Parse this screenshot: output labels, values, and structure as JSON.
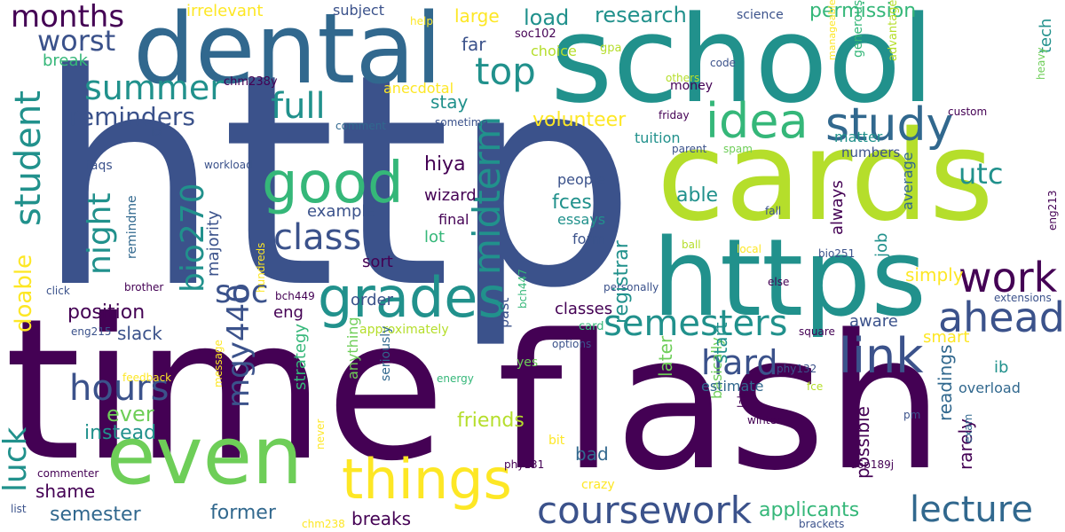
{
  "palette": {
    "dark_purple": "#440154",
    "deep_blue": "#3b528b",
    "blue": "#31688e",
    "teal": "#21918c",
    "green": "#35b779",
    "lime": "#6ece58",
    "light_lime": "#b5de2b",
    "yellow": "#fde725",
    "background": "#ffffff"
  },
  "words": [
    "http",
    "time",
    "flash",
    "school",
    "cards",
    "dental",
    "https",
    "even",
    "things",
    "grades",
    "good",
    "idea",
    "study",
    "coursework",
    "lecture",
    "link",
    "work",
    "ahead",
    "semesters",
    "top",
    "midterm",
    "class",
    "summer",
    "hours",
    "student",
    "luck",
    "months",
    "full",
    "hard",
    "night",
    "worst",
    "reminders",
    "soc",
    "bio270",
    "mgy440",
    "doable",
    "utc",
    "research",
    "load",
    "permission",
    "irrelevant",
    "subject",
    "large",
    "volunteer",
    "stay",
    "far",
    "position",
    "slack",
    "ever",
    "instead",
    "semester",
    "shame",
    "former",
    "breaks",
    "applicants",
    "readings",
    "rarely",
    "possible",
    "job",
    "always",
    "able",
    "fces",
    "hiya",
    "wizard",
    "lot",
    "sort",
    "order",
    "eng",
    "majority",
    "example",
    "remindme",
    "break",
    "help",
    "soc102",
    "gpa",
    "choice",
    "chm238y",
    "lol",
    "comment",
    "sometime",
    "anecdotal",
    "money",
    "others",
    "code",
    "science",
    "advantage",
    "generous",
    "manageable",
    "tech",
    "heavy",
    "friday",
    "tuition",
    "matter",
    "numbers",
    "custom",
    "parent",
    "spam",
    "faqs",
    "workload",
    "people",
    "final",
    "essays",
    "form",
    "average",
    "simply",
    "fall",
    "ball",
    "local",
    "bio251",
    "else",
    "eng213",
    "smart",
    "aware",
    "ib",
    "overload",
    "extensions",
    "personally",
    "click",
    "brother",
    "eng215",
    "bch449",
    "hundreds",
    "bch447",
    "past",
    "approximately",
    "classes",
    "card",
    "options",
    "square",
    "phy132",
    "fce",
    "pm",
    "winter",
    "labs",
    "basically",
    "estimate",
    "later",
    "start",
    "registrar",
    "bad",
    "friends",
    "yes",
    "feedback",
    "message",
    "energy",
    "seriously",
    "anything",
    "strategy",
    "never",
    "bit",
    "crazy",
    "phy131",
    "d6p189j",
    "exam",
    "commenter",
    "list",
    "chm238",
    "brackets"
  ]
}
